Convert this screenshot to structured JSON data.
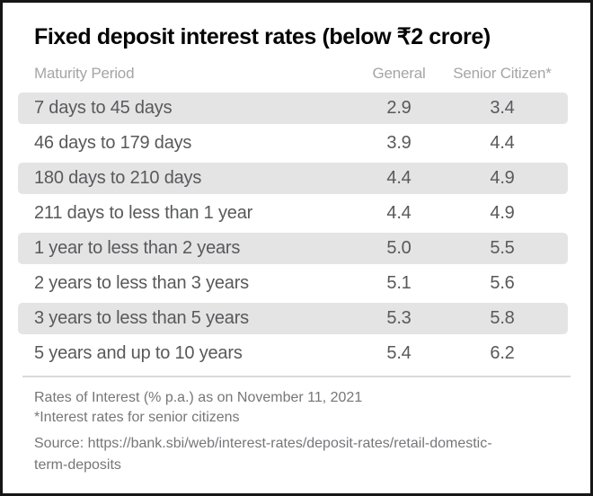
{
  "title": "Fixed deposit interest rates (below ₹2 crore)",
  "table": {
    "columns": [
      "Maturity Period",
      "General",
      "Senior Citizen*"
    ],
    "rows": [
      {
        "maturity": "7 days to 45 days",
        "general": "2.9",
        "senior": "3.4"
      },
      {
        "maturity": "46 days to 179 days",
        "general": "3.9",
        "senior": "4.4"
      },
      {
        "maturity": "180 days to 210 days",
        "general": "4.4",
        "senior": "4.9"
      },
      {
        "maturity": "211 days to less than 1 year",
        "general": "4.4",
        "senior": "4.9"
      },
      {
        "maturity": "1 year to less than 2 years",
        "general": "5.0",
        "senior": "5.5"
      },
      {
        "maturity": "2 years to less than 3 years",
        "general": "5.1",
        "senior": "5.6"
      },
      {
        "maturity": "3 years to less than 5 years",
        "general": "5.3",
        "senior": "5.8"
      },
      {
        "maturity": "5 years and up to 10 years",
        "general": "5.4",
        "senior": "6.2"
      }
    ]
  },
  "footer": {
    "note1": "Rates of Interest (% p.a.) as on November 11, 2021",
    "note2": "*Interest rates for senior citizens",
    "source": "Source: https://bank.sbi/web/interest-rates/deposit-rates/retail-domestic-term-deposits"
  },
  "colors": {
    "frame_border": "#161616",
    "title_text": "#050505",
    "header_text": "#a4a5a7",
    "row_text": "#58595b",
    "row_band": "#e4e4e5",
    "divider": "#dadada",
    "footer_text": "#757679"
  },
  "chart_data": {
    "type": "table",
    "title": "Fixed deposit interest rates (below ₹2 crore)",
    "columns": [
      "Maturity Period",
      "General",
      "Senior Citizen*"
    ],
    "rows": [
      [
        "7 days to 45 days",
        2.9,
        3.4
      ],
      [
        "46 days to 179 days",
        3.9,
        4.4
      ],
      [
        "180 days to 210 days",
        4.4,
        4.9
      ],
      [
        "211 days to less than 1 year",
        4.4,
        4.9
      ],
      [
        "1 year to less than 2 years",
        5.0,
        5.5
      ],
      [
        "2 years to less than 3 years",
        5.1,
        5.6
      ],
      [
        "3 years to less than 5 years",
        5.3,
        5.8
      ],
      [
        "5 years and up to 10 years",
        5.4,
        6.2
      ]
    ],
    "notes": [
      "Rates of Interest (% p.a.) as on November 11, 2021",
      "*Interest rates for senior citizens",
      "Source: https://bank.sbi/web/interest-rates/deposit-rates/retail-domestic-term-deposits"
    ],
    "layout": {
      "alternating_row_shading": true,
      "shaded_rows": [
        0,
        2,
        4,
        6
      ]
    }
  }
}
